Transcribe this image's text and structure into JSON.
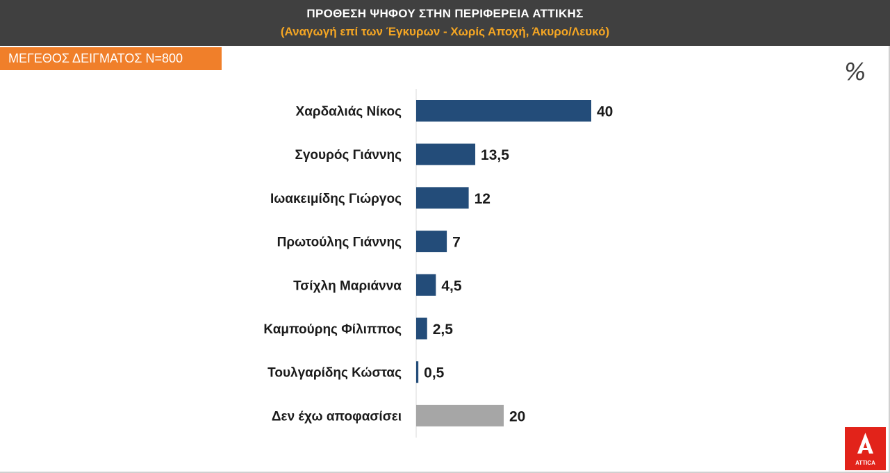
{
  "header": {
    "title": "ΠΡΟΘΕΣΗ ΨΗΦΟΥ ΣΤΗΝ ΠΕΡΙΦΕΡΕΙΑ ΑΤΤΙΚΗΣ",
    "subtitle": "(Αναγωγή επί των Έγκυρων - Χωρίς Αποχή, Άκυρο/Λευκό)"
  },
  "sample_badge": "ΜΕΓΕΘΟΣ ΔΕΙΓΜΑΤΟΣ Ν=800",
  "unit_symbol": "%",
  "logo": {
    "text": "ATTICA",
    "icon": "attica-logo-icon",
    "color": "#e2231a"
  },
  "colors": {
    "bar": "#234c79",
    "bar_other": "#a6a6a6",
    "header_bg": "#404040",
    "subtitle": "#f5a623",
    "badge": "#f07f2a"
  },
  "chart_data": {
    "type": "bar",
    "orientation": "horizontal",
    "title": "ΠΡΟΘΕΣΗ ΨΗΦΟΥ ΣΤΗΝ ΠΕΡΙΦΕΡΕΙΑ ΑΤΤΙΚΗΣ",
    "subtitle": "(Αναγωγή επί των Έγκυρων - Χωρίς Αποχή, Άκυρο/Λευκό)",
    "categories": [
      "Χαρδαλιάς Νίκος",
      "Σγουρός Γιάννης",
      "Ιωακειμίδης Γιώργος",
      "Πρωτούλης Γιάννης",
      "Τσίχλη Μαριάννα",
      "Καμπούρης Φίλιππος",
      "Τουλγαρίδης Κώστας",
      "Δεν έχω αποφασίσει"
    ],
    "values": [
      40,
      13.5,
      12,
      7,
      4.5,
      2.5,
      0.5,
      20
    ],
    "value_labels": [
      "40",
      "13,5",
      "12",
      "7",
      "4,5",
      "2,5",
      "0,5",
      "20"
    ],
    "xlim": [
      0,
      40
    ],
    "grid": false,
    "legend": "none"
  }
}
